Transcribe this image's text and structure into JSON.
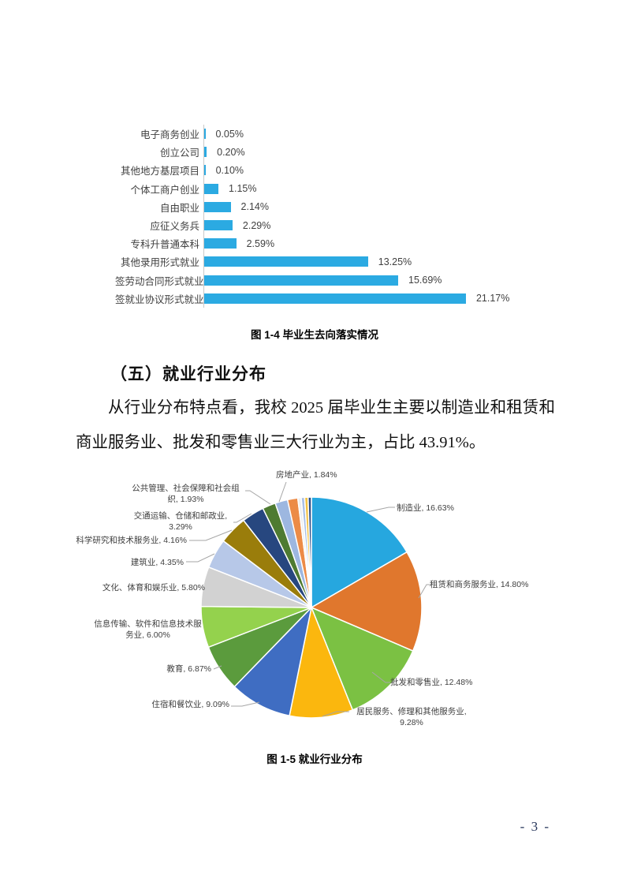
{
  "section": {
    "heading": "（五）就业行业分布",
    "paragraph": "从行业分布特点看，我校 2025 届毕业生主要以制造业和租赁和商业服务业、批发和零售业三大行业为主，占比 43.91%。"
  },
  "figure4": {
    "caption": "图 1-4 毕业生去向落实情况"
  },
  "figure5": {
    "caption": "图 1-5 就业行业分布"
  },
  "page": {
    "number_label": "- 3 -"
  },
  "chart_data": [
    {
      "type": "bar",
      "orientation": "horizontal",
      "title": "图 1-4 毕业生去向落实情况",
      "categories": [
        "电子商务创业",
        "创立公司",
        "其他地方基层项目",
        "个体工商户创业",
        "自由职业",
        "应征义务兵",
        "专科升普通本科",
        "其他录用形式就业",
        "签劳动合同形式就业",
        "签就业协议形式就业"
      ],
      "values": [
        0.05,
        0.2,
        0.1,
        1.15,
        2.14,
        2.29,
        2.59,
        13.25,
        15.69,
        21.17
      ],
      "value_labels": [
        "0.05%",
        "0.20%",
        "0.10%",
        "1.15%",
        "2.14%",
        "2.29%",
        "2.59%",
        "13.25%",
        "15.69%",
        "21.17%"
      ],
      "bar_color": "#2baae2",
      "axis_line_color": "#c9c9c9",
      "xlim": [
        0,
        22
      ],
      "grid": false,
      "legend": false
    },
    {
      "type": "pie",
      "title": "图 1-5 就业行业分布",
      "start_angle_deg": 0,
      "direction": "clockwise",
      "stroke_color": "#ffffff",
      "leader_line_color": "#a6a6a6",
      "slices": [
        {
          "label": "制造业",
          "value": 16.63,
          "display": "制造业, 16.63%",
          "color": "#26a7df"
        },
        {
          "label": "租赁和商务服务业",
          "value": 14.8,
          "display": "租赁和商务服务业, 14.80%",
          "color": "#e0772d"
        },
        {
          "label": "批发和零售业",
          "value": 12.48,
          "display": "批发和零售业, 12.48%",
          "color": "#7bc143"
        },
        {
          "label": "居民服务、修理和其他服务业",
          "value": 9.28,
          "display": "居民服务、修理和其他服务业, 9.28%",
          "color": "#fbb70e"
        },
        {
          "label": "住宿和餐饮业",
          "value": 9.09,
          "display": "住宿和餐饮业, 9.09%",
          "color": "#3f6dc2"
        },
        {
          "label": "教育",
          "value": 6.87,
          "display": "教育, 6.87%",
          "color": "#5b9b3d"
        },
        {
          "label": "信息传输、软件和信息技术服务业",
          "value": 6.0,
          "display": "信息传输、软件和信息技术服务业, 6.00%",
          "color": "#94d24d"
        },
        {
          "label": "文化、体育和娱乐业",
          "value": 5.8,
          "display": "文化、体育和娱乐业, 5.80%",
          "color": "#d2d2d2"
        },
        {
          "label": "建筑业",
          "value": 4.35,
          "display": "建筑业, 4.35%",
          "color": "#b7c8e8"
        },
        {
          "label": "科学研究和技术服务业",
          "value": 4.16,
          "display": "科学研究和技术服务业, 4.16%",
          "color": "#9a7d0b"
        },
        {
          "label": "交通运输、仓储和邮政业",
          "value": 3.29,
          "display": "交通运输、仓储和邮政业, 3.29%",
          "color": "#27477f"
        },
        {
          "label": "公共管理、社会保障和社会组织",
          "value": 1.93,
          "display": "公共管理、社会保障和社会组织, 1.93%",
          "color": "#4e7b31"
        },
        {
          "label": "房地产业",
          "value": 1.84,
          "display": "房地产业, 1.84%",
          "color": "#9db7e0"
        },
        {
          "label": null,
          "value": 1.5,
          "display": null,
          "color": "#ec8b47"
        },
        {
          "label": null,
          "value": 0.5,
          "display": null,
          "color": "#efefef"
        },
        {
          "label": null,
          "value": 0.5,
          "display": null,
          "color": "#a9c0e6"
        },
        {
          "label": null,
          "value": 0.5,
          "display": null,
          "color": "#f3c242"
        },
        {
          "label": null,
          "value": 0.48,
          "display": null,
          "color": "#2d4e88"
        }
      ]
    }
  ]
}
